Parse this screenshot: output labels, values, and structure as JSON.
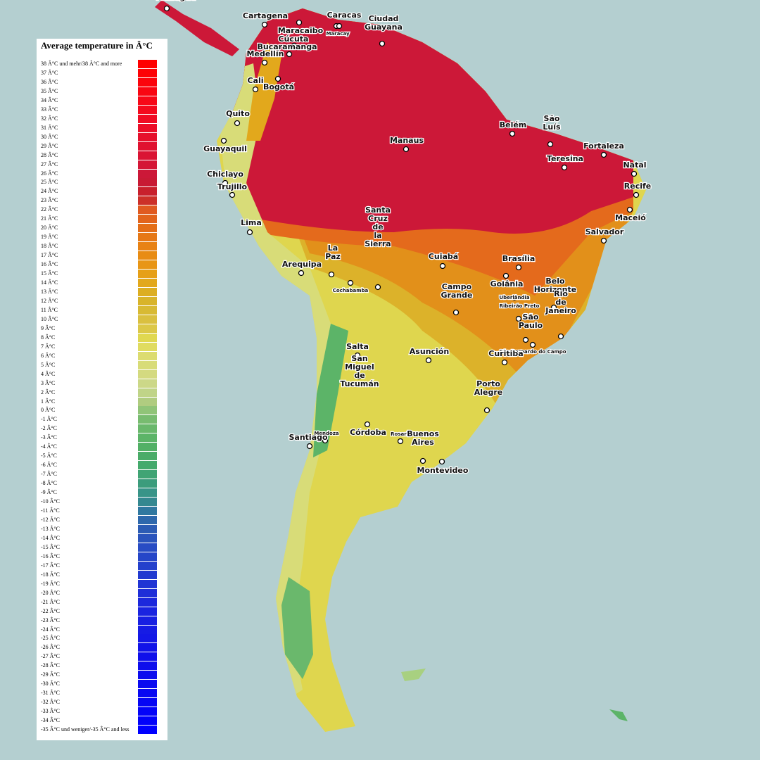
{
  "legend": {
    "title": "Average temperature in Â°C",
    "entries": [
      {
        "label": "38 Â°C und mehr/38 Â°C and more",
        "color": "#ff0000"
      },
      {
        "label": "37 Â°C",
        "color": "#fd0206"
      },
      {
        "label": "36 Â°C",
        "color": "#fb040c"
      },
      {
        "label": "35 Â°C",
        "color": "#f90612"
      },
      {
        "label": "34 Â°C",
        "color": "#f70818"
      },
      {
        "label": "33 Â°C",
        "color": "#f40a1e"
      },
      {
        "label": "32 Â°C",
        "color": "#f00c24"
      },
      {
        "label": "31 Â°C",
        "color": "#ec0e28"
      },
      {
        "label": "30 Â°C",
        "color": "#e6102c"
      },
      {
        "label": "29 Â°C",
        "color": "#e01230"
      },
      {
        "label": "28 Â°C",
        "color": "#da1434"
      },
      {
        "label": "27 Â°C",
        "color": "#d41636"
      },
      {
        "label": "26 Â°C",
        "color": "#cc1838"
      },
      {
        "label": "25 Â°C",
        "color": "#c81a34"
      },
      {
        "label": "24 Â°C",
        "color": "#c8202c"
      },
      {
        "label": "23 Â°C",
        "color": "#cc3028"
      },
      {
        "label": "22 Â°C",
        "color": "#e05a20"
      },
      {
        "label": "21 Â°C",
        "color": "#e2641c"
      },
      {
        "label": "20 Â°C",
        "color": "#e46e18"
      },
      {
        "label": "19 Â°C",
        "color": "#e67816"
      },
      {
        "label": "18 Â°C",
        "color": "#e88214"
      },
      {
        "label": "17 Â°C",
        "color": "#e88c14"
      },
      {
        "label": "16 Â°C",
        "color": "#e89616"
      },
      {
        "label": "15 Â°C",
        "color": "#e6a018"
      },
      {
        "label": "14 Â°C",
        "color": "#e2a81c"
      },
      {
        "label": "13 Â°C",
        "color": "#dcae22"
      },
      {
        "label": "12 Â°C",
        "color": "#d8b42a"
      },
      {
        "label": "11 Â°C",
        "color": "#d8ba34"
      },
      {
        "label": "10 Â°C",
        "color": "#dac040"
      },
      {
        "label": "9 Â°C",
        "color": "#dcc848"
      },
      {
        "label": "8 Â°C",
        "color": "#e0d850"
      },
      {
        "label": "7 Â°C",
        "color": "#e0dc60"
      },
      {
        "label": "6 Â°C",
        "color": "#dcdc70"
      },
      {
        "label": "5 Â°C",
        "color": "#d8dc78"
      },
      {
        "label": "4 Â°C",
        "color": "#d4da80"
      },
      {
        "label": "3 Â°C",
        "color": "#ccd888"
      },
      {
        "label": "2 Â°C",
        "color": "#c0d488"
      },
      {
        "label": "1 Â°C",
        "color": "#b0cc80"
      },
      {
        "label": "0 Â°C",
        "color": "#90c478"
      },
      {
        "label": "-1 Â°C",
        "color": "#78bc70"
      },
      {
        "label": "-2 Â°C",
        "color": "#6ab86c"
      },
      {
        "label": "-3 Â°C",
        "color": "#5cb468"
      },
      {
        "label": "-4 Â°C",
        "color": "#52b066"
      },
      {
        "label": "-5 Â°C",
        "color": "#4aac68"
      },
      {
        "label": "-6 Â°C",
        "color": "#44aa6c"
      },
      {
        "label": "-7 Â°C",
        "color": "#40a474"
      },
      {
        "label": "-8 Â°C",
        "color": "#3c9c7c"
      },
      {
        "label": "-9 Â°C",
        "color": "#389488"
      },
      {
        "label": "-10 Â°C",
        "color": "#348890"
      },
      {
        "label": "-11 Â°C",
        "color": "#3078a0"
      },
      {
        "label": "-12 Â°C",
        "color": "#2e68ac"
      },
      {
        "label": "-13 Â°C",
        "color": "#2c5cb4"
      },
      {
        "label": "-14 Â°C",
        "color": "#2a54bc"
      },
      {
        "label": "-15 Â°C",
        "color": "#284cc4"
      },
      {
        "label": "-16 Â°C",
        "color": "#2646c8"
      },
      {
        "label": "-17 Â°C",
        "color": "#2440cc"
      },
      {
        "label": "-18 Â°C",
        "color": "#223ad0"
      },
      {
        "label": "-19 Â°C",
        "color": "#2034d4"
      },
      {
        "label": "-20 Â°C",
        "color": "#1e2ed8"
      },
      {
        "label": "-21 Â°C",
        "color": "#1c28dc"
      },
      {
        "label": "-22 Â°C",
        "color": "#1a24e0"
      },
      {
        "label": "-23 Â°C",
        "color": "#1820e2"
      },
      {
        "label": "-24 Â°C",
        "color": "#161ce4"
      },
      {
        "label": "-25 Â°C",
        "color": "#1418e6"
      },
      {
        "label": "-26 Â°C",
        "color": "#1214e8"
      },
      {
        "label": "-27 Â°C",
        "color": "#1010ea"
      },
      {
        "label": "-28 Â°C",
        "color": "#0e0eec"
      },
      {
        "label": "-29 Â°C",
        "color": "#0c0cee"
      },
      {
        "label": "-30 Â°C",
        "color": "#0a0af0"
      },
      {
        "label": "-31 Â°C",
        "color": "#0808f2"
      },
      {
        "label": "-32 Â°C",
        "color": "#0606f4"
      },
      {
        "label": "-33 Â°C",
        "color": "#0404f8"
      },
      {
        "label": "-34 Â°C",
        "color": "#0202fa"
      },
      {
        "label": "-35 Â°C und weniger/-35 Â°C and less",
        "color": "#0000ff"
      }
    ]
  },
  "cities": [
    "Managua",
    "Cartagena",
    "Caracas",
    "Maracaibo",
    "Maracay",
    "Ciudad Guayana",
    "Cúcuta",
    "Bucaramanga",
    "Medellín",
    "Cali",
    "Bogotá",
    "Quito",
    "Guayaquil",
    "Chiclayo",
    "Trujillo",
    "Lima",
    "Manaus",
    "Belém",
    "São Luís",
    "Fortaleza",
    "Teresina",
    "Natal",
    "Recife",
    "Maceió",
    "Salvador",
    "Brasília",
    "Goiânia",
    "Cuiabá",
    "Santa Cruz de la Sierra",
    "La Paz",
    "Arequipa",
    "Cochabamba",
    "Campo Grande",
    "Belo Horizonte",
    "Uberlândia",
    "Ribeirão Preto",
    "Rio de Janeiro",
    "São Paulo",
    "São Bernardo do Campo",
    "Curitiba",
    "Asunción",
    "Salta",
    "San Miguel de Tucumán",
    "Porto Alegre",
    "Córdoba",
    "Rosario",
    "Mendoza",
    "Santiago",
    "Buenos Aires",
    "Montevideo"
  ]
}
